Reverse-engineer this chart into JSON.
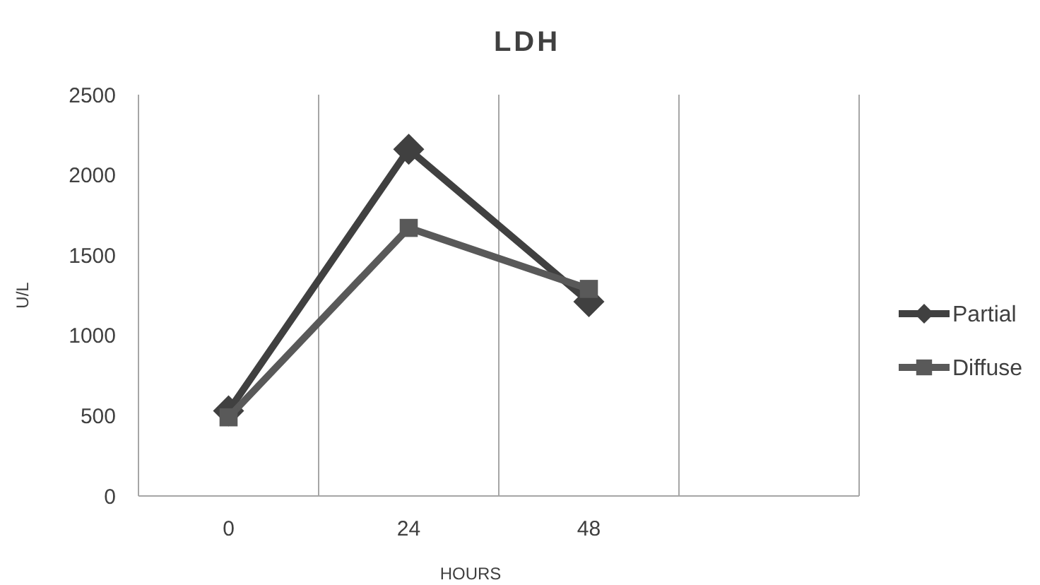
{
  "chart_data": {
    "type": "line",
    "title": "LDH",
    "xlabel": "HOURS",
    "ylabel": "U/L",
    "categories": [
      "0",
      "24",
      "48",
      null
    ],
    "series": [
      {
        "name": "Partial",
        "color": "#404040",
        "marker": "diamond",
        "values": [
          530,
          2160,
          1210,
          null
        ]
      },
      {
        "name": "Diffuse",
        "color": "#595959",
        "marker": "square",
        "values": [
          490,
          1670,
          1290,
          null
        ]
      }
    ],
    "ylim": [
      0,
      2500
    ],
    "yticks": [
      0,
      500,
      1000,
      1500,
      2000,
      2500
    ],
    "grid": "x",
    "legend": "right"
  }
}
